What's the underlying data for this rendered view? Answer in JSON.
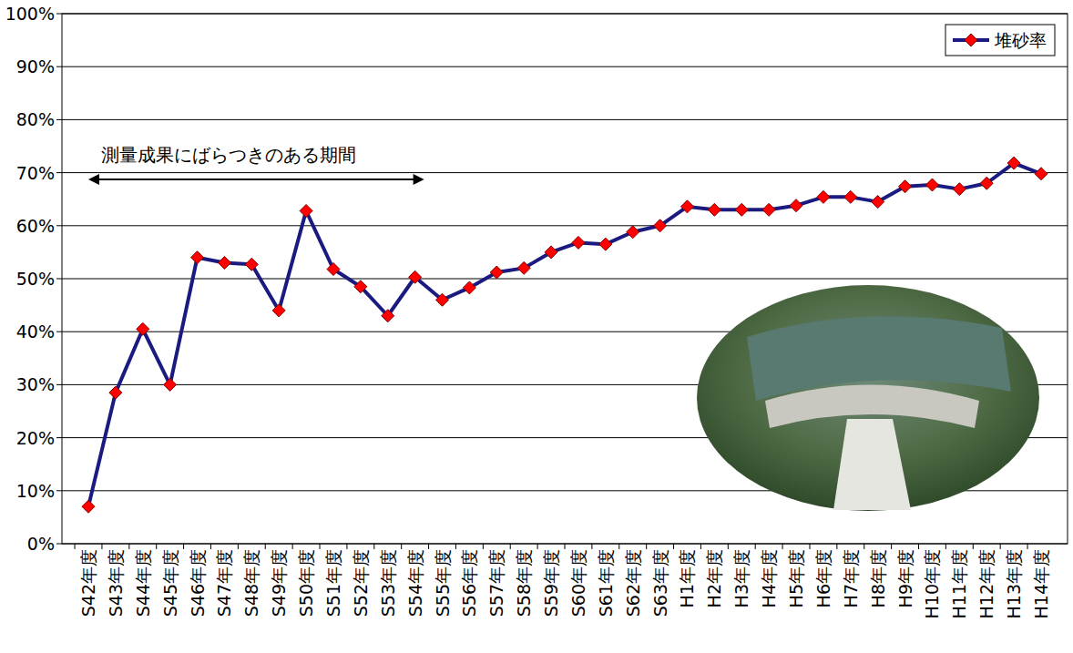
{
  "chart_data": {
    "type": "line",
    "categories": [
      "S42年度",
      "S43年度",
      "S44年度",
      "S45年度",
      "S46年度",
      "S47年度",
      "S48年度",
      "S49年度",
      "S50年度",
      "S51年度",
      "S52年度",
      "S53年度",
      "S54年度",
      "S55年度",
      "S56年度",
      "S57年度",
      "S58年度",
      "S59年度",
      "S60年度",
      "S61年度",
      "S62年度",
      "S63年度",
      "H1年度",
      "H2年度",
      "H3年度",
      "H4年度",
      "H5年度",
      "H6年度",
      "H7年度",
      "H8年度",
      "H9年度",
      "H10年度",
      "H11年度",
      "H12年度",
      "H13年度",
      "H14年度"
    ],
    "series": [
      {
        "name": "堆砂率",
        "color": "#1a1a80",
        "marker": "diamond",
        "values": [
          7,
          28.5,
          40.5,
          30,
          54,
          53,
          52.7,
          44,
          62.8,
          51.8,
          48.5,
          43,
          50.3,
          46,
          48.3,
          51.2,
          52,
          55,
          56.8,
          56.5,
          58.8,
          60,
          63.6,
          63,
          63,
          63,
          63.8,
          65.4,
          65.4,
          64.5,
          67.4,
          67.7,
          66.9,
          68,
          71.8,
          69.8
        ]
      }
    ],
    "ylim": [
      0,
      100
    ],
    "yticks": [
      {
        "value": 0,
        "label": "0%"
      },
      {
        "value": 10,
        "label": "10%"
      },
      {
        "value": 20,
        "label": "20%"
      },
      {
        "value": 30,
        "label": "30%"
      },
      {
        "value": 40,
        "label": "40%"
      },
      {
        "value": 50,
        "label": "50%"
      },
      {
        "value": 60,
        "label": "60%"
      },
      {
        "value": 70,
        "label": "70%"
      },
      {
        "value": 80,
        "label": "80%"
      },
      {
        "value": 90,
        "label": "90%"
      },
      {
        "value": 100,
        "label": "100%"
      }
    ],
    "grid": true,
    "legend": "upper right",
    "annotations": [
      {
        "text": "測量成果にばらつきのある期間",
        "range": [
          "S42年度",
          "S54年度"
        ]
      }
    ]
  }
}
